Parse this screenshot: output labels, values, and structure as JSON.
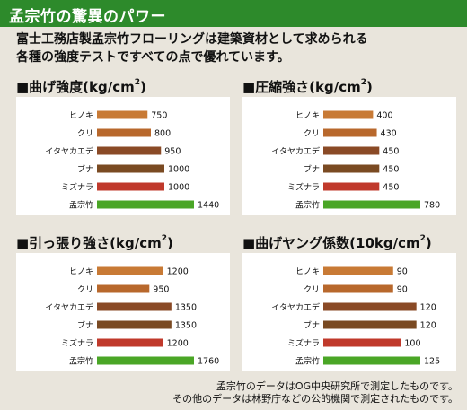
{
  "header": {
    "title": "孟宗竹の驚異のパワー"
  },
  "intro": {
    "line1": "富士工務店製孟宗竹フローリングは建築資材として求められる",
    "line2": "各種の強度テストですべての点で優れています。"
  },
  "colors": {
    "header_bg": "#2d8a2b",
    "background": "#e9e5dc",
    "hinoki": "#c87a35",
    "kuri": "#b8682c",
    "itayakaede": "#8a4a26",
    "buna": "#7a4a22",
    "mizunara": "#c0392b",
    "mousouchiku": "#4aa626"
  },
  "chart_data": [
    {
      "type": "bar",
      "title": "■曲げ強度(kg/cm",
      "title_sup": "2",
      "title_tail": ")",
      "categories": [
        "ヒノキ",
        "クリ",
        "イタヤカエデ",
        "ブナ",
        "ミズナラ",
        "孟宗竹"
      ],
      "values": [
        750,
        800,
        950,
        1000,
        1000,
        1440
      ],
      "labels": [
        "750",
        "800",
        "950",
        "1000",
        "1000",
        "1440"
      ],
      "bar_colors": [
        "#c87a35",
        "#b8682c",
        "#8a4a26",
        "#7a4a22",
        "#c0392b",
        "#4aa626"
      ],
      "xmax": 1440
    },
    {
      "type": "bar",
      "title": "■圧縮強さ(kg/cm",
      "title_sup": "2",
      "title_tail": ")",
      "categories": [
        "ヒノキ",
        "クリ",
        "イタヤカエデ",
        "ブナ",
        "ミズナラ",
        "孟宗竹"
      ],
      "values": [
        400,
        430,
        450,
        450,
        450,
        780
      ],
      "labels": [
        "400",
        "430",
        "450",
        "450",
        "450",
        "780"
      ],
      "bar_colors": [
        "#c87a35",
        "#b8682c",
        "#8a4a26",
        "#7a4a22",
        "#c0392b",
        "#4aa626"
      ],
      "xmax": 780
    },
    {
      "type": "bar",
      "title": "■引っ張り強さ(kg/cm",
      "title_sup": "2",
      "title_tail": ")",
      "categories": [
        "ヒノキ",
        "クリ",
        "イタヤカエデ",
        "ブナ",
        "ミズナラ",
        "孟宗竹"
      ],
      "values": [
        1200,
        950,
        1350,
        1350,
        1200,
        1760
      ],
      "labels": [
        "1200",
        "950",
        "1350",
        "1350",
        "1200",
        "1760"
      ],
      "bar_colors": [
        "#c87a35",
        "#b8682c",
        "#8a4a26",
        "#7a4a22",
        "#c0392b",
        "#4aa626"
      ],
      "xmax": 1760
    },
    {
      "type": "bar",
      "title": "■曲げヤング係数(10kg/cm",
      "title_sup": "2",
      "title_tail": ")",
      "categories": [
        "ヒノキ",
        "クリ",
        "イタヤカエデ",
        "ブナ",
        "ミズナラ",
        "孟宗竹"
      ],
      "values": [
        90,
        90,
        120,
        120,
        100,
        125
      ],
      "labels": [
        "90",
        "90",
        "120",
        "120",
        "100",
        "125"
      ],
      "bar_colors": [
        "#c87a35",
        "#b8682c",
        "#8a4a26",
        "#7a4a22",
        "#c0392b",
        "#4aa626"
      ],
      "xmax": 125
    }
  ],
  "footer": {
    "line1": "孟宗竹のデータはOG中央研究所で測定したものです。",
    "line2": "その他のデータは林野庁などの公的機関で測定されたものです。"
  }
}
